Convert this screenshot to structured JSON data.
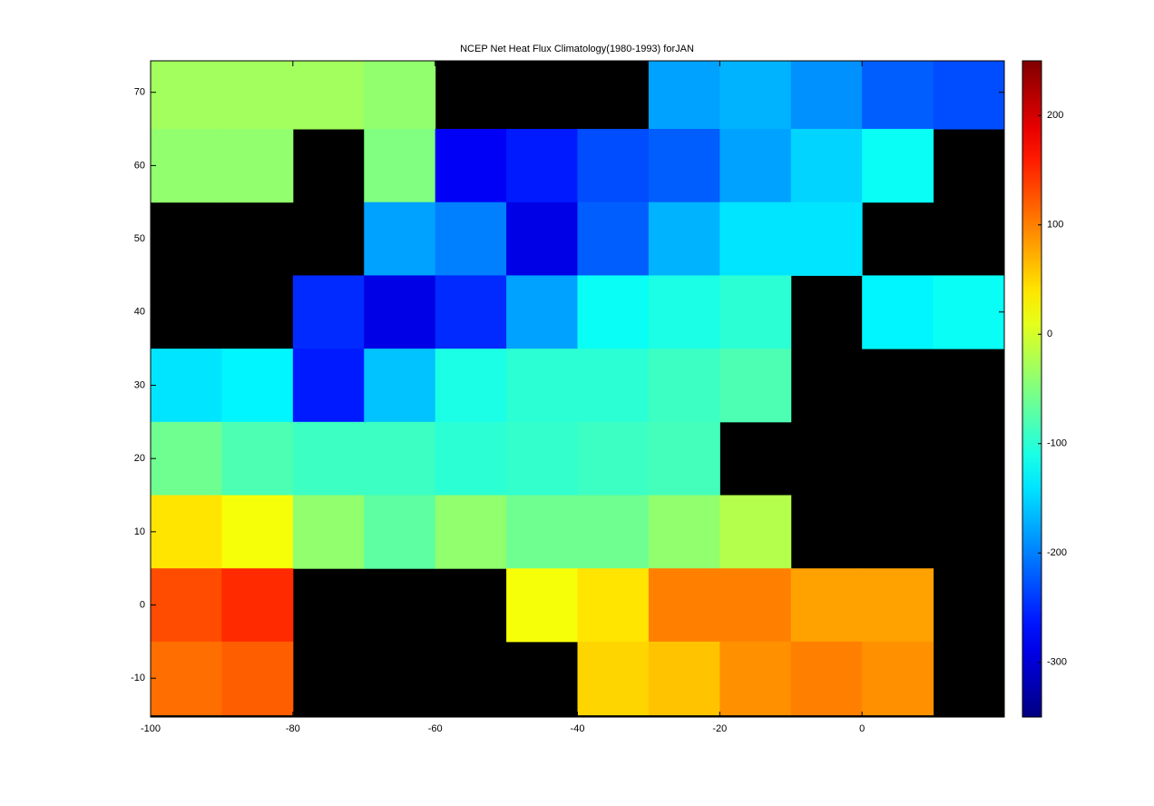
{
  "chart_data": {
    "type": "heatmap",
    "title": "NCEP Net Heat Flux Climatology(1980-1993) forJAN",
    "x": [
      -95,
      -85,
      -75,
      -65,
      -55,
      -45,
      -35,
      -25,
      -15,
      -5,
      5,
      15
    ],
    "y": [
      70,
      60,
      50,
      40,
      30,
      20,
      10,
      0,
      -10
    ],
    "values": [
      [
        -30,
        -30,
        -30,
        -40,
        null,
        null,
        null,
        -180,
        -170,
        -190,
        -220,
        -230
      ],
      [
        -40,
        -40,
        null,
        -50,
        -280,
        -260,
        -230,
        -220,
        -180,
        -150,
        -120,
        null
      ],
      [
        null,
        null,
        null,
        -180,
        -200,
        -290,
        -220,
        -170,
        -140,
        -140,
        null,
        null
      ],
      [
        null,
        null,
        -250,
        -290,
        -250,
        -180,
        -120,
        -110,
        -100,
        null,
        -130,
        -120
      ],
      [
        -140,
        -130,
        -260,
        -160,
        -110,
        -100,
        -100,
        -90,
        -80,
        null,
        null,
        null
      ],
      [
        -60,
        -80,
        -90,
        -90,
        -100,
        -95,
        -90,
        -85,
        null,
        null,
        null,
        null
      ],
      [
        40,
        20,
        -40,
        -70,
        -40,
        -60,
        -60,
        -40,
        -20,
        null,
        null,
        null
      ],
      [
        130,
        150,
        null,
        null,
        null,
        20,
        40,
        100,
        100,
        80,
        80,
        null
      ],
      [
        110,
        120,
        null,
        null,
        null,
        null,
        50,
        60,
        90,
        100,
        90,
        null
      ]
    ],
    "xlim": [
      -100,
      20
    ],
    "ylim": [
      -15.3,
      74.3
    ],
    "xticks": [
      -100,
      -80,
      -60,
      -40,
      -20,
      0
    ],
    "yticks": [
      -10,
      0,
      10,
      20,
      30,
      40,
      50,
      60,
      70
    ],
    "clim": [
      -350,
      250
    ],
    "cticks": [
      -300,
      -200,
      -100,
      0,
      100,
      200
    ],
    "colormap": "jet"
  }
}
